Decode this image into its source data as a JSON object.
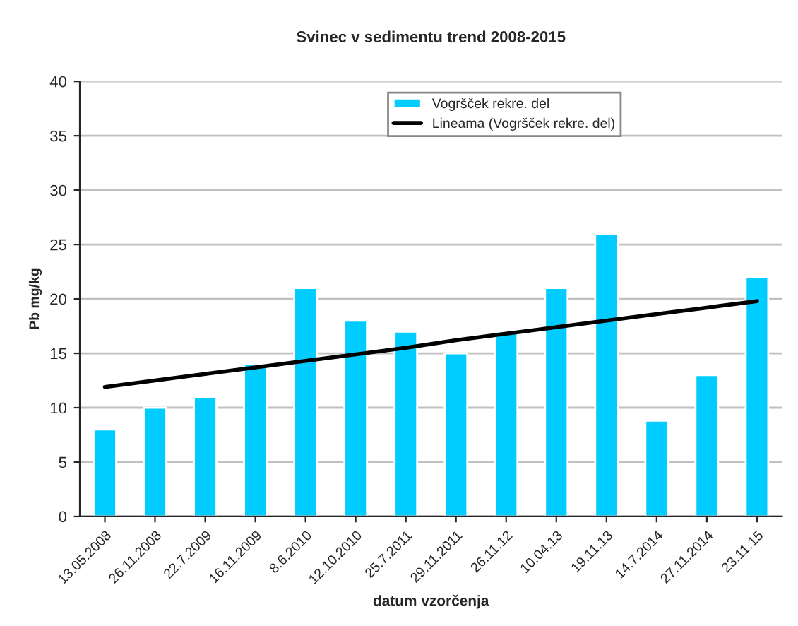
{
  "chart_data": {
    "type": "bar",
    "title": "Svinec v sedimentu trend 2008-2015",
    "xlabel": "datum vzorčenja",
    "ylabel": "Pb mg/kg",
    "categories": [
      "13.05.2008",
      "26.11.2008",
      "22.7.2009",
      "16.11.2009",
      "8.6.2010",
      "12.10.2010",
      "25.7.2011",
      "29.11.2011",
      "26.11.12",
      "10.04.13",
      "19.11.13",
      "14.7.2014",
      "27.11.2014",
      "23.11.15"
    ],
    "series": [
      {
        "name": "Vogršček rekre. del",
        "color": "#00ccff",
        "values": [
          8,
          10,
          11,
          14,
          21,
          18,
          17,
          15,
          17,
          21,
          26,
          8.8,
          13,
          22
        ]
      },
      {
        "name": "Lineama (Vogršček rekre. del)",
        "type": "line",
        "color": "#000000",
        "values": [
          11.9,
          12.5,
          13.1,
          13.7,
          14.3,
          14.9,
          15.5,
          16.2,
          16.8,
          17.4,
          18.0,
          18.6,
          19.2,
          19.8
        ]
      }
    ],
    "ylim": [
      0,
      40
    ],
    "yticks": [
      0,
      5,
      10,
      15,
      20,
      25,
      30,
      35,
      40
    ],
    "grid": "y",
    "legend": "top right"
  }
}
